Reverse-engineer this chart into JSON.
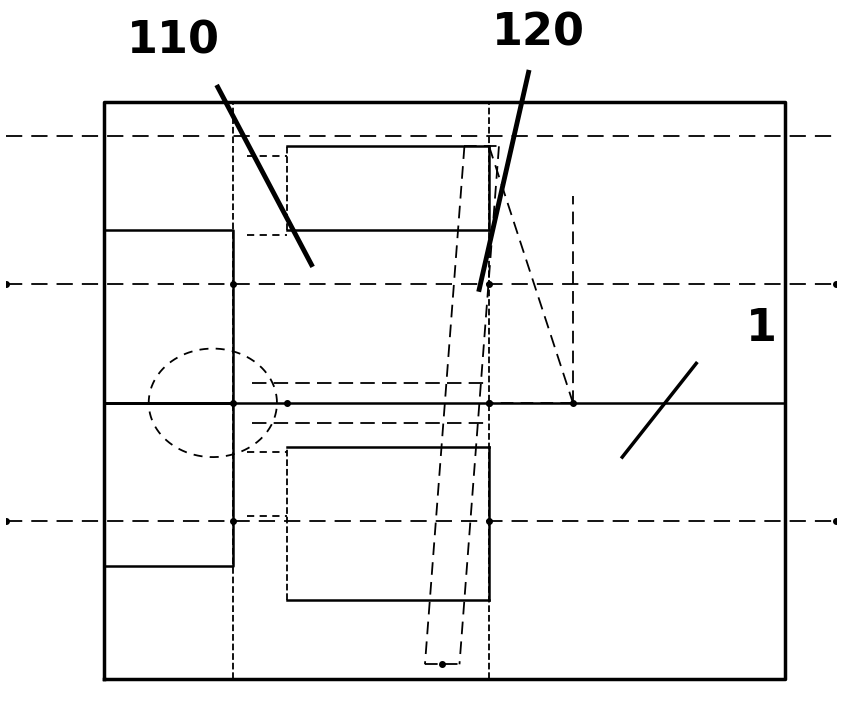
{
  "background": "#ffffff",
  "figsize": [
    8.42,
    7.15
  ],
  "dpi": 100,
  "label_110": "110",
  "label_120": "120",
  "label_1": "1",
  "label_fontsize": 32,
  "col": "#000000"
}
